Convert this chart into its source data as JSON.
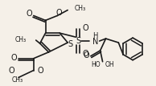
{
  "background_color": "#f5f0e8",
  "line_color": "#1a1a1a",
  "lw": 1.2,
  "figsize": [
    1.94,
    1.07
  ],
  "dpi": 100,
  "xlim": [
    0,
    194
  ],
  "ylim": [
    0,
    107
  ]
}
